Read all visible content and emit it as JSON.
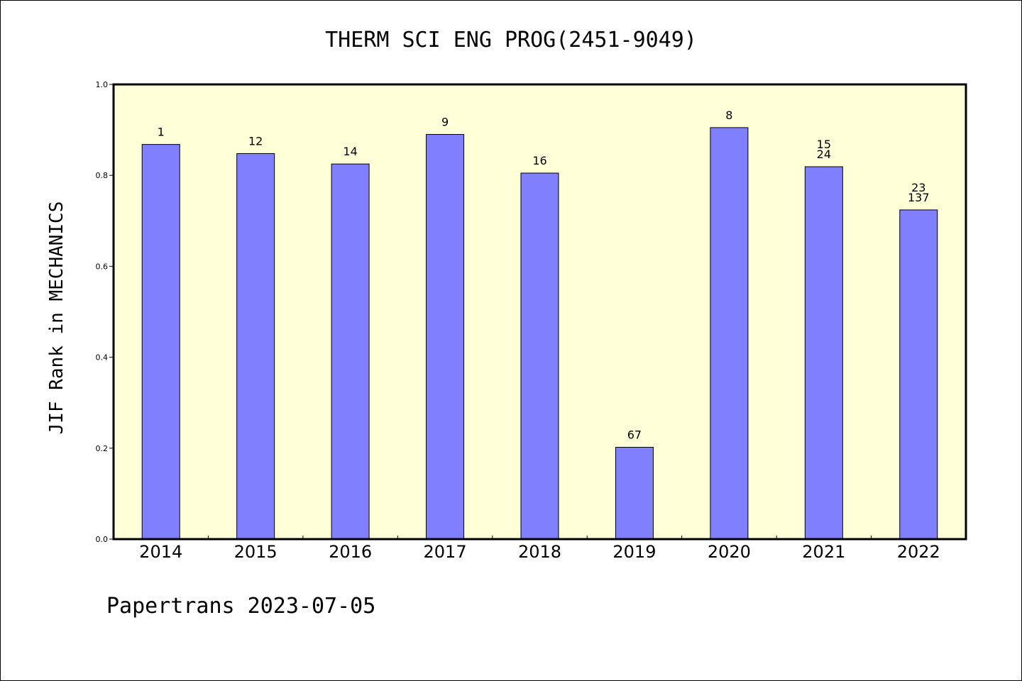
{
  "chart_data": {
    "type": "bar",
    "title": "THERM SCI ENG PROG(2451-9049)",
    "ylabel": "JIF Rank in MECHANICS",
    "xlabel": "",
    "footer": "Papertrans 2023-07-05",
    "categories": [
      "2014",
      "2015",
      "2016",
      "2017",
      "2018",
      "2019",
      "2020",
      "2021",
      "2022"
    ],
    "values": [
      0.868,
      0.848,
      0.825,
      0.89,
      0.805,
      0.202,
      0.905,
      0.819,
      0.724
    ],
    "bar_labels": [
      [
        "1"
      ],
      [
        "12"
      ],
      [
        "14"
      ],
      [
        "9"
      ],
      [
        "16"
      ],
      [
        "67"
      ],
      [
        "8"
      ],
      [
        "15",
        "24"
      ],
      [
        "23",
        "137"
      ]
    ],
    "ylim": [
      0,
      1.0
    ],
    "yticks": [
      "0.0",
      "0.2",
      "0.4",
      "0.6",
      "0.8",
      "1.0"
    ],
    "grid": false,
    "colors": {
      "bar": "#8080ff",
      "plot_background": "#ffffd8",
      "axis": "#000000"
    }
  }
}
